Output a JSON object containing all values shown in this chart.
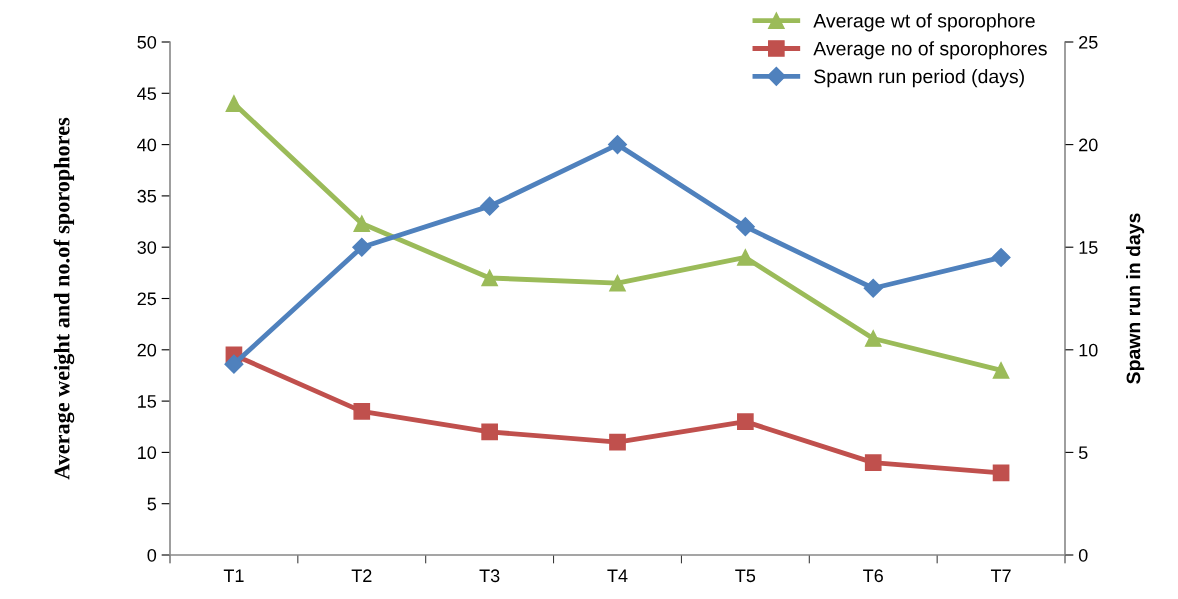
{
  "chart_data": {
    "type": "line",
    "categories": [
      "T1",
      "T2",
      "T3",
      "T4",
      "T5",
      "T6",
      "T7"
    ],
    "ylabel": "Average weight and no.of sporophores",
    "y2label": "Spawn run in days",
    "ylim": [
      0,
      50
    ],
    "yticks": [
      0,
      5,
      10,
      15,
      20,
      25,
      30,
      35,
      40,
      45,
      50
    ],
    "y2lim": [
      0,
      25
    ],
    "y2ticks": [
      0,
      5,
      10,
      15,
      20,
      25
    ],
    "grid": false,
    "legend": "top right",
    "series": [
      {
        "name": "Average wt of sporophore",
        "color": "#9bbb59",
        "marker": "triangle",
        "values": [
          44,
          32.3,
          27,
          26.5,
          29,
          21.1,
          18
        ]
      },
      {
        "name": "Average no of sporophores",
        "color": "#c0504d",
        "marker": "square",
        "values": [
          19.5,
          14,
          12,
          11,
          13,
          9,
          8
        ]
      },
      {
        "name": "Spawn run period (days)",
        "color": "#4f81bd",
        "marker": "diamond",
        "axis": "y2",
        "values": [
          9.3,
          15,
          17,
          20,
          16,
          13,
          14.5
        ]
      }
    ]
  }
}
